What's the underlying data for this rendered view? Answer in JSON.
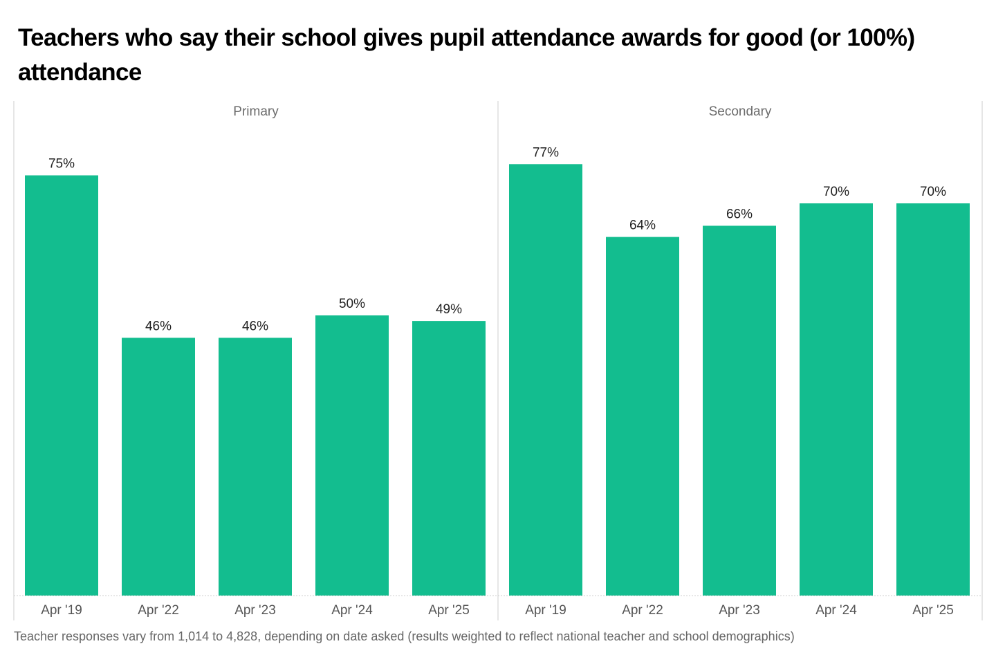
{
  "chart_data": {
    "type": "bar",
    "title": "Teachers who say their school gives pupil attendance awards for good (or 100%) attendance",
    "xlabel": "",
    "ylabel": "",
    "ylim": [
      0,
      100
    ],
    "grid": false,
    "categories": [
      "Apr '19",
      "Apr '22",
      "Apr '23",
      "Apr '24",
      "Apr '25"
    ],
    "panels": [
      {
        "name": "Primary",
        "values": [
          75,
          46,
          46,
          50,
          49
        ],
        "labels": [
          "75%",
          "46%",
          "46%",
          "50%",
          "49%"
        ]
      },
      {
        "name": "Secondary",
        "values": [
          77,
          64,
          66,
          70,
          70
        ],
        "labels": [
          "77%",
          "64%",
          "66%",
          "70%",
          "70%"
        ]
      }
    ],
    "bar_color": "#13bd8f",
    "footnote": "Teacher responses vary from 1,014 to 4,828, depending on date asked (results weighted to reflect national teacher and school demographics)"
  }
}
